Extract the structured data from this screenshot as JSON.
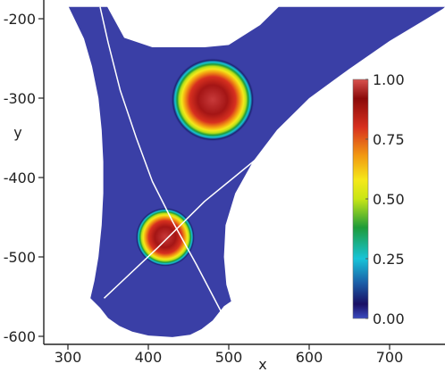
{
  "chart_data": {
    "type": "heatmap",
    "title": "",
    "xlabel": "x",
    "ylabel": "y",
    "xlim": [
      270,
      770
    ],
    "ylim": [
      -612,
      -178
    ],
    "x_ticks": [
      {
        "value": 300,
        "label": "300"
      },
      {
        "value": 400,
        "label": "400"
      },
      {
        "value": 500,
        "label": "500"
      },
      {
        "value": 600,
        "label": "600"
      },
      {
        "value": 700,
        "label": "700"
      }
    ],
    "y_ticks": [
      {
        "value": -200,
        "label": "-200"
      },
      {
        "value": -300,
        "label": "-300"
      },
      {
        "value": -400,
        "label": "-400"
      },
      {
        "value": -500,
        "label": "-500"
      },
      {
        "value": -600,
        "label": "-600"
      }
    ],
    "colorbar": {
      "min": 0,
      "max": 1,
      "ticks": [
        {
          "value": 1.0,
          "label": "1.00"
        },
        {
          "value": 0.75,
          "label": "0.75"
        },
        {
          "value": 0.5,
          "label": "0.50"
        },
        {
          "value": 0.25,
          "label": "0.25"
        },
        {
          "value": 0.0,
          "label": "0.00"
        }
      ],
      "colors": [
        "#3b4cc0",
        "#1a0f64",
        "#1b5fa8",
        "#17c4d8",
        "#1e9b3a",
        "#c8e615",
        "#f5e81a",
        "#f29a12",
        "#d7301f",
        "#8b0a0a",
        "#d9534f"
      ]
    },
    "domain_color": "#3a3fa6",
    "blobs": [
      {
        "center": [
          480,
          -302
        ],
        "radius": 52,
        "peak": 1.0
      },
      {
        "center": [
          421,
          -475
        ],
        "radius": 37,
        "peak": 1.0
      }
    ]
  }
}
